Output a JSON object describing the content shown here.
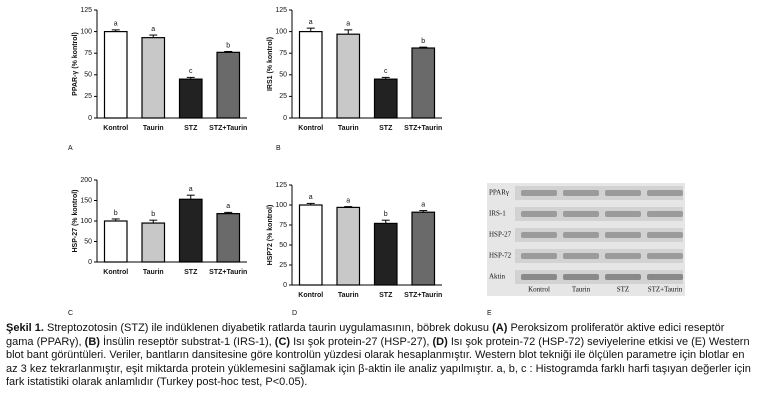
{
  "chart_data": [
    {
      "type": "bar",
      "panel": "A",
      "ylabel": "PPAR-γ (% kontrol)",
      "categories": [
        "Kontrol",
        "Taurin",
        "STZ",
        "STZ+Taurin"
      ],
      "values": [
        100,
        93,
        45,
        76
      ],
      "errors": [
        2,
        3,
        2,
        1
      ],
      "letters": [
        "a",
        "a",
        "c",
        "b"
      ],
      "colors": [
        "#ffffff",
        "#c8c8c8",
        "#222222",
        "#6a6a6a"
      ],
      "ylim": [
        0,
        125
      ],
      "yticks": [
        0,
        25,
        50,
        75,
        100,
        125
      ]
    },
    {
      "type": "bar",
      "panel": "B",
      "ylabel": "IRS1 (% kontrol)",
      "categories": [
        "Kontrol",
        "Taurin",
        "STZ",
        "STZ+Taurin"
      ],
      "values": [
        100,
        97,
        45,
        81
      ],
      "errors": [
        4,
        5,
        2,
        1
      ],
      "letters": [
        "a",
        "a",
        "c",
        "b"
      ],
      "colors": [
        "#ffffff",
        "#c8c8c8",
        "#222222",
        "#6a6a6a"
      ],
      "ylim": [
        0,
        125
      ],
      "yticks": [
        0,
        25,
        50,
        75,
        100,
        125
      ]
    },
    {
      "type": "bar",
      "panel": "C",
      "ylabel": "HSP-27 (% kontrol)",
      "categories": [
        "Kontrol",
        "Taurin",
        "STZ",
        "STZ+Taurin"
      ],
      "values": [
        100,
        95,
        153,
        118
      ],
      "errors": [
        5,
        7,
        10,
        3
      ],
      "letters": [
        "b",
        "b",
        "a",
        "a"
      ],
      "colors": [
        "#ffffff",
        "#c8c8c8",
        "#222222",
        "#6a6a6a"
      ],
      "ylim": [
        0,
        200
      ],
      "yticks": [
        0,
        50,
        100,
        150,
        200
      ]
    },
    {
      "type": "bar",
      "panel": "D",
      "ylabel": "HSP72 (% kontrol)",
      "categories": [
        "Kontrol",
        "Taurin",
        "STZ",
        "STZ+Taurin"
      ],
      "values": [
        100,
        97,
        77,
        91
      ],
      "errors": [
        2,
        1,
        4,
        2
      ],
      "letters": [
        "a",
        "a",
        "b",
        "a"
      ],
      "colors": [
        "#ffffff",
        "#c8c8c8",
        "#222222",
        "#6a6a6a"
      ],
      "ylim": [
        0,
        125
      ],
      "yticks": [
        0,
        25,
        50,
        75,
        100,
        125
      ]
    }
  ],
  "blot": {
    "panel": "E",
    "bands": [
      "PPARγ",
      "IRS-1",
      "HSP-27",
      "HSP-72",
      "Aktin"
    ],
    "lanes": [
      "Kontrol",
      "Taurin",
      "STZ",
      "STZ+Taurin"
    ]
  },
  "caption": [
    {
      "text": "Şekil 1.",
      "bold": true
    },
    {
      "text": " Streptozotosin (STZ) ile indüklenen diyabetik ratlarda taurin uygulamasının, böbrek dokusu ",
      "bold": false
    },
    {
      "text": "(A)",
      "bold": true
    },
    {
      "text": " Peroksizom proliferatör aktive edici reseptör gama (PPARγ), ",
      "bold": false
    },
    {
      "text": "(B)",
      "bold": true
    },
    {
      "text": " İnsülin reseptör substrat-1 (IRS-1), ",
      "bold": false
    },
    {
      "text": "(C)",
      "bold": true
    },
    {
      "text": " Isı şok protein-27 (HSP-27), ",
      "bold": false
    },
    {
      "text": "(D)",
      "bold": true
    },
    {
      "text": " Isı şok protein-72 (HSP-72) seviyelerine etkisi ve (E) Western blot bant görüntüleri. Veriler, bantların dansitesine göre kontrolün yüzdesi olarak hesaplanmıştır. Western blot tekniği ile ölçülen parametre için blotlar en az 3 kez tekrarlanmıştır, eşit miktarda protein yüklemesini sağlamak için β-aktin ile analiz yapılmıştır. a, b, c : Histogramda farklı harfi taşıyan değerler için fark istatistiki olarak anlamlıdır (Turkey post-hoc test, P<0.05).",
      "bold": false
    }
  ]
}
